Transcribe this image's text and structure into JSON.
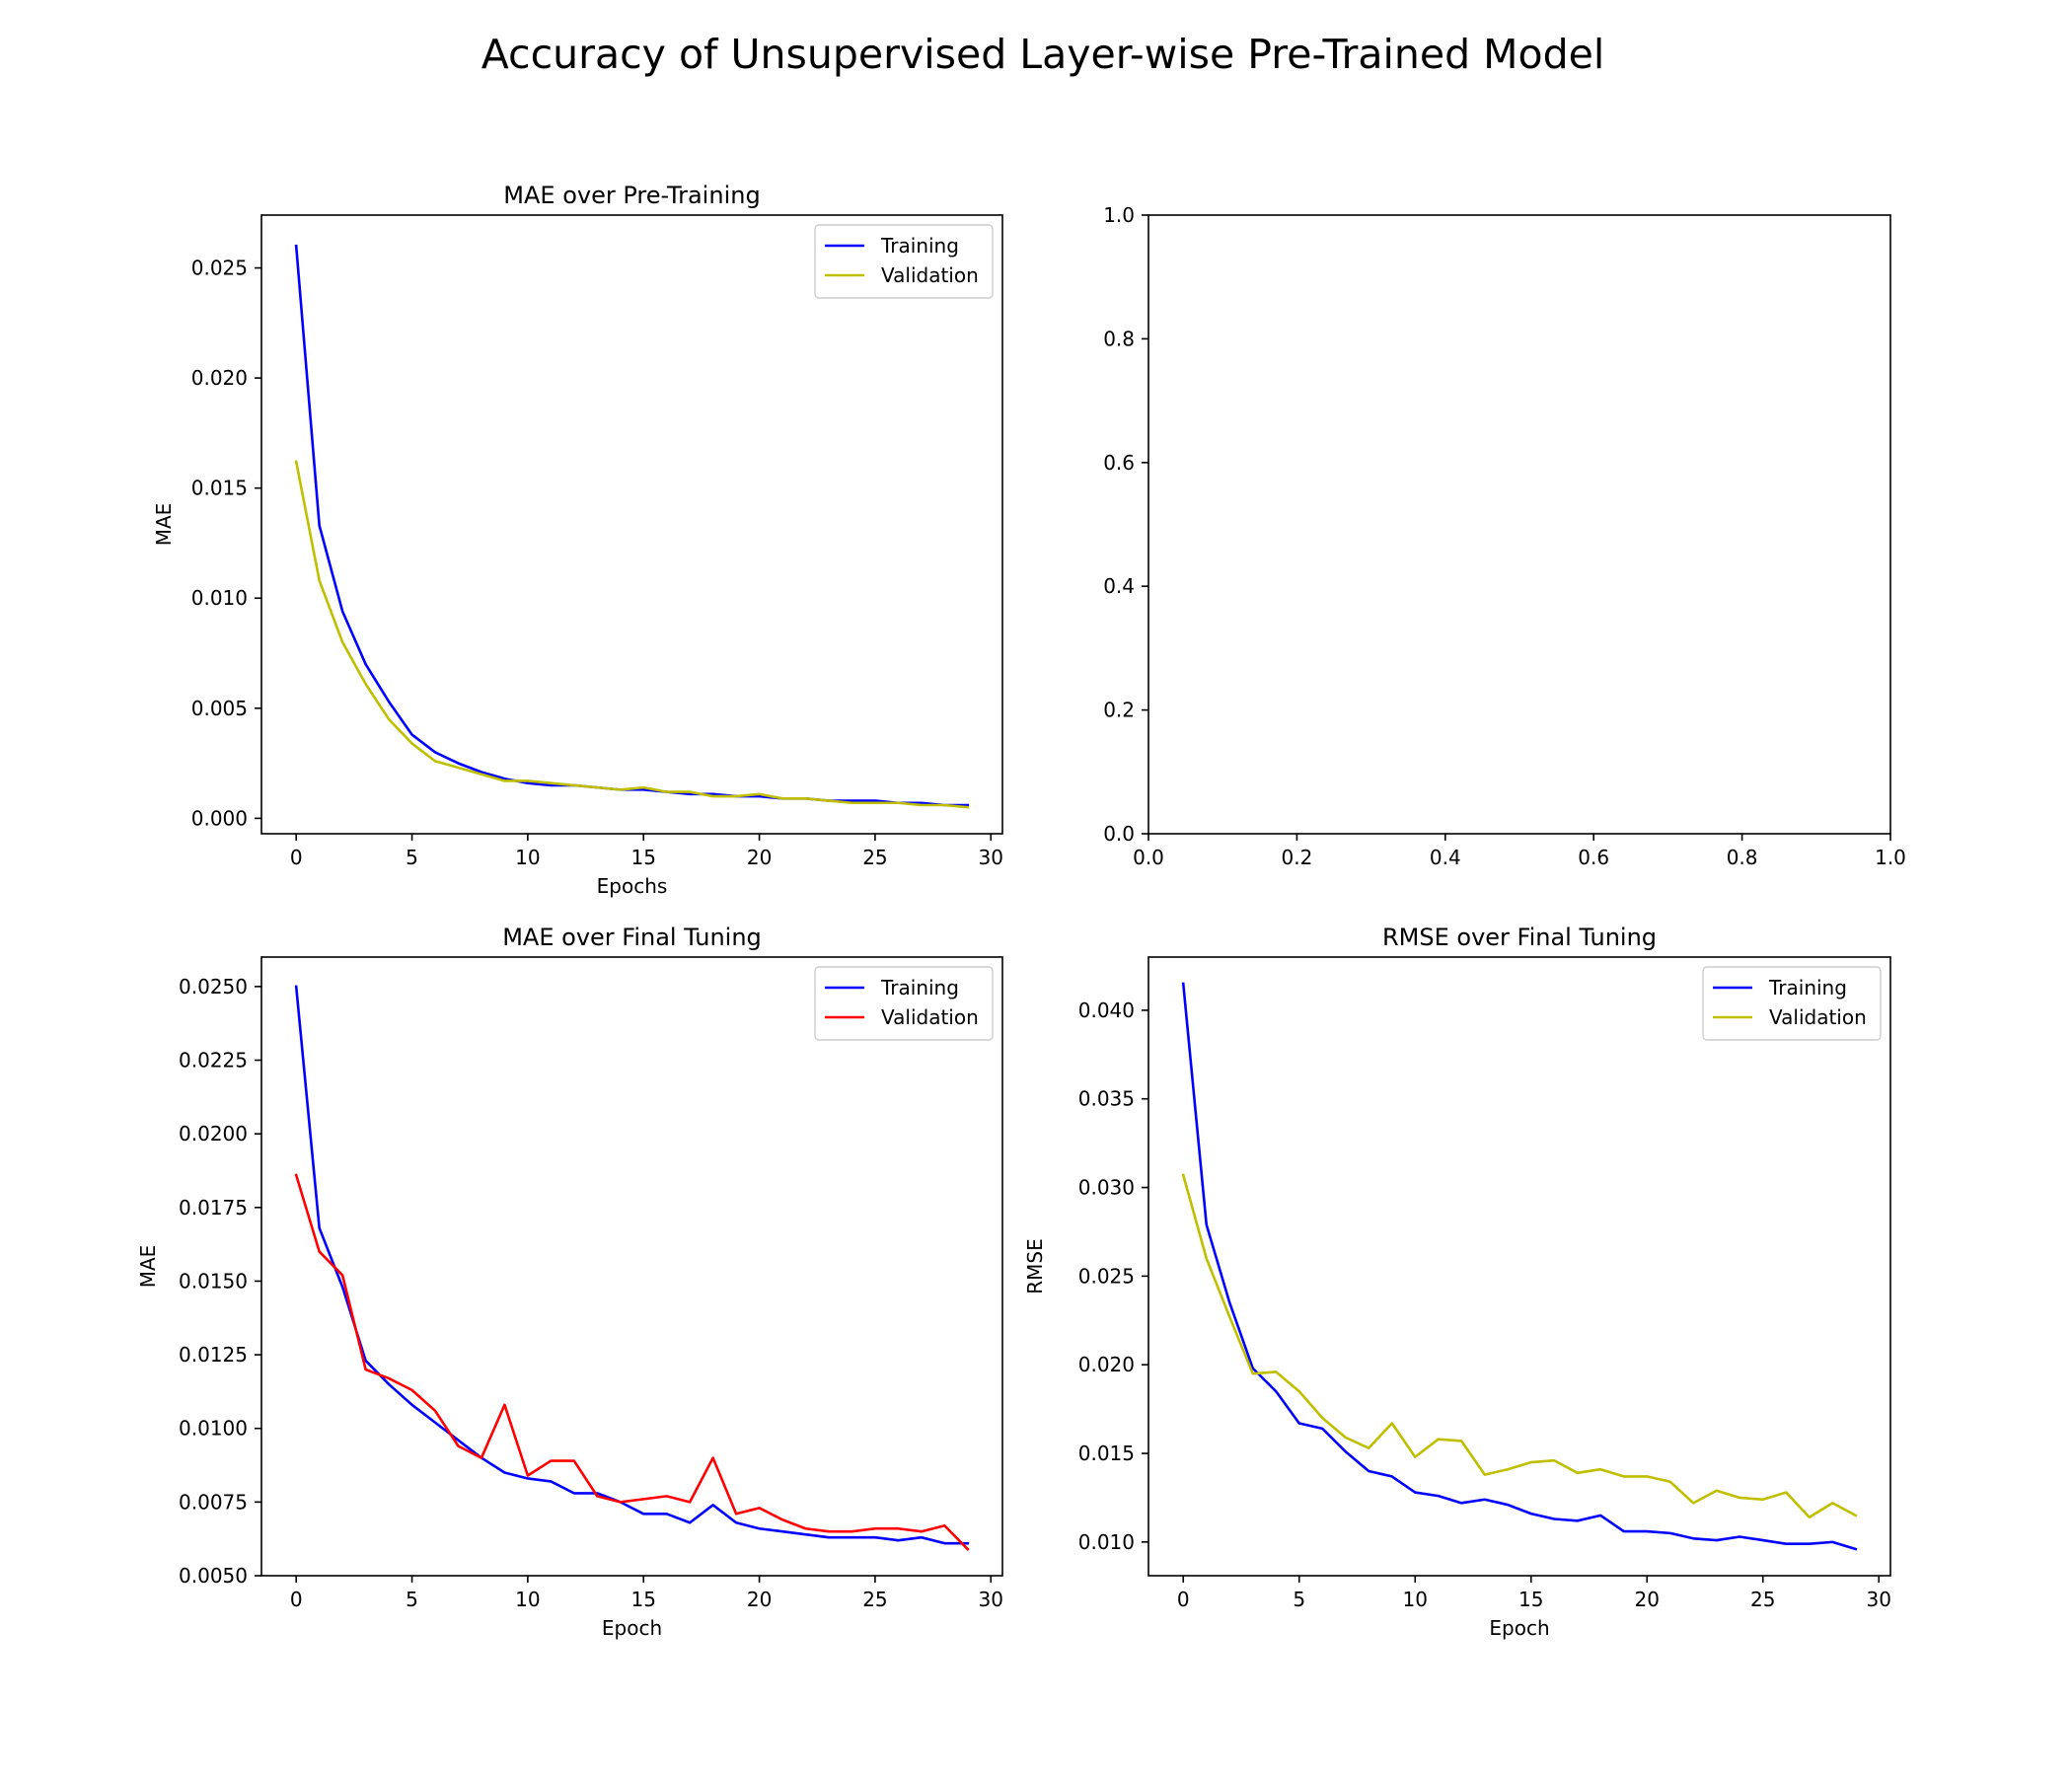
{
  "suptitle": "Accuracy of Unsupervised Layer-wise Pre-Trained Model",
  "chart_data": [
    {
      "type": "line",
      "title": "MAE over Pre-Training",
      "xlabel": "Epochs",
      "ylabel": "MAE",
      "xlim": [
        -1.5,
        30.5
      ],
      "ylim": [
        -0.0007,
        0.0274
      ],
      "xticks": [
        0,
        5,
        10,
        15,
        20,
        25,
        30
      ],
      "yticks": [
        0.0,
        0.005,
        0.01,
        0.015,
        0.02,
        0.025
      ],
      "ytick_labels": [
        "0.000",
        "0.005",
        "0.010",
        "0.015",
        "0.020",
        "0.025"
      ],
      "legend": "top-right",
      "x": [
        0,
        1,
        2,
        3,
        4,
        5,
        6,
        7,
        8,
        9,
        10,
        11,
        12,
        13,
        14,
        15,
        16,
        17,
        18,
        19,
        20,
        21,
        22,
        23,
        24,
        25,
        26,
        27,
        28,
        29
      ],
      "series": [
        {
          "name": "Training",
          "color": "#0000ff",
          "values": [
            0.026,
            0.0133,
            0.0094,
            0.007,
            0.0053,
            0.0038,
            0.003,
            0.0025,
            0.0021,
            0.0018,
            0.0016,
            0.0015,
            0.0015,
            0.0014,
            0.0013,
            0.0013,
            0.0012,
            0.0011,
            0.0011,
            0.001,
            0.001,
            0.0009,
            0.0009,
            0.0008,
            0.0008,
            0.0008,
            0.0007,
            0.0007,
            0.0006,
            0.0006
          ]
        },
        {
          "name": "Validation",
          "color": "#bfbf00",
          "values": [
            0.0162,
            0.0108,
            0.008,
            0.0061,
            0.0045,
            0.0034,
            0.0026,
            0.0023,
            0.002,
            0.0017,
            0.0017,
            0.0016,
            0.0015,
            0.0014,
            0.0013,
            0.0014,
            0.0012,
            0.0012,
            0.001,
            0.001,
            0.0011,
            0.0009,
            0.0009,
            0.0008,
            0.0007,
            0.0007,
            0.0007,
            0.0006,
            0.0006,
            0.0005
          ]
        }
      ]
    },
    {
      "type": "line",
      "title": "",
      "xlabel": "",
      "ylabel": "",
      "xlim": [
        0,
        1
      ],
      "ylim": [
        0,
        1
      ],
      "xticks": [
        0.0,
        0.2,
        0.4,
        0.6,
        0.8,
        1.0
      ],
      "yticks": [
        0.0,
        0.2,
        0.4,
        0.6,
        0.8,
        1.0
      ],
      "xtick_labels": [
        "0.0",
        "0.2",
        "0.4",
        "0.6",
        "0.8",
        "1.0"
      ],
      "ytick_labels": [
        "0.0",
        "0.2",
        "0.4",
        "0.6",
        "0.8",
        "1.0"
      ],
      "series": []
    },
    {
      "type": "line",
      "title": "MAE over Final Tuning",
      "xlabel": "Epoch",
      "ylabel": "MAE",
      "xlim": [
        -1.5,
        30.5
      ],
      "ylim": [
        0.005,
        0.026
      ],
      "xticks": [
        0,
        5,
        10,
        15,
        20,
        25,
        30
      ],
      "yticks": [
        0.005,
        0.0075,
        0.01,
        0.0125,
        0.015,
        0.0175,
        0.02,
        0.0225,
        0.025
      ],
      "ytick_labels": [
        "0.0050",
        "0.0075",
        "0.0100",
        "0.0125",
        "0.0150",
        "0.0175",
        "0.0200",
        "0.0225",
        "0.0250"
      ],
      "legend": "top-right",
      "x": [
        0,
        1,
        2,
        3,
        4,
        5,
        6,
        7,
        8,
        9,
        10,
        11,
        12,
        13,
        14,
        15,
        16,
        17,
        18,
        19,
        20,
        21,
        22,
        23,
        24,
        25,
        26,
        27,
        28,
        29
      ],
      "series": [
        {
          "name": "Training",
          "color": "#0000ff",
          "values": [
            0.025,
            0.0168,
            0.0148,
            0.0123,
            0.0115,
            0.0108,
            0.0102,
            0.0096,
            0.009,
            0.0085,
            0.0083,
            0.0082,
            0.0078,
            0.0078,
            0.0075,
            0.0071,
            0.0071,
            0.0068,
            0.0074,
            0.0068,
            0.0066,
            0.0065,
            0.0064,
            0.0063,
            0.0063,
            0.0063,
            0.0062,
            0.0063,
            0.0061,
            0.0061
          ]
        },
        {
          "name": "Validation",
          "color": "#ff0000",
          "values": [
            0.0186,
            0.016,
            0.0152,
            0.012,
            0.0117,
            0.0113,
            0.0106,
            0.0094,
            0.009,
            0.0108,
            0.0084,
            0.0089,
            0.0089,
            0.0077,
            0.0075,
            0.0076,
            0.0077,
            0.0075,
            0.009,
            0.0071,
            0.0073,
            0.0069,
            0.0066,
            0.0065,
            0.0065,
            0.0066,
            0.0066,
            0.0065,
            0.0067,
            0.0059
          ]
        }
      ]
    },
    {
      "type": "line",
      "title": "RMSE over Final Tuning",
      "xlabel": "Epoch",
      "ylabel": "RMSE",
      "xlim": [
        -1.5,
        30.5
      ],
      "ylim": [
        0.0081,
        0.043
      ],
      "xticks": [
        0,
        5,
        10,
        15,
        20,
        25,
        30
      ],
      "yticks": [
        0.01,
        0.015,
        0.02,
        0.025,
        0.03,
        0.035,
        0.04
      ],
      "ytick_labels": [
        "0.010",
        "0.015",
        "0.020",
        "0.025",
        "0.030",
        "0.035",
        "0.040"
      ],
      "legend": "top-right",
      "x": [
        0,
        1,
        2,
        3,
        4,
        5,
        6,
        7,
        8,
        9,
        10,
        11,
        12,
        13,
        14,
        15,
        16,
        17,
        18,
        19,
        20,
        21,
        22,
        23,
        24,
        25,
        26,
        27,
        28,
        29
      ],
      "series": [
        {
          "name": "Training",
          "color": "#0000ff",
          "values": [
            0.0415,
            0.0279,
            0.0235,
            0.0198,
            0.0185,
            0.0167,
            0.0164,
            0.0151,
            0.014,
            0.0137,
            0.0128,
            0.0126,
            0.0122,
            0.0124,
            0.0121,
            0.0116,
            0.0113,
            0.0112,
            0.0115,
            0.0106,
            0.0106,
            0.0105,
            0.0102,
            0.0101,
            0.0103,
            0.0101,
            0.0099,
            0.0099,
            0.01,
            0.0096
          ]
        },
        {
          "name": "Validation",
          "color": "#bfbf00",
          "values": [
            0.0307,
            0.026,
            0.0227,
            0.0195,
            0.0196,
            0.0185,
            0.017,
            0.0159,
            0.0153,
            0.0167,
            0.0148,
            0.0158,
            0.0157,
            0.0138,
            0.0141,
            0.0145,
            0.0146,
            0.0139,
            0.0141,
            0.0137,
            0.0137,
            0.0134,
            0.0122,
            0.0129,
            0.0125,
            0.0124,
            0.0128,
            0.0114,
            0.0122,
            0.0115
          ]
        }
      ]
    }
  ]
}
